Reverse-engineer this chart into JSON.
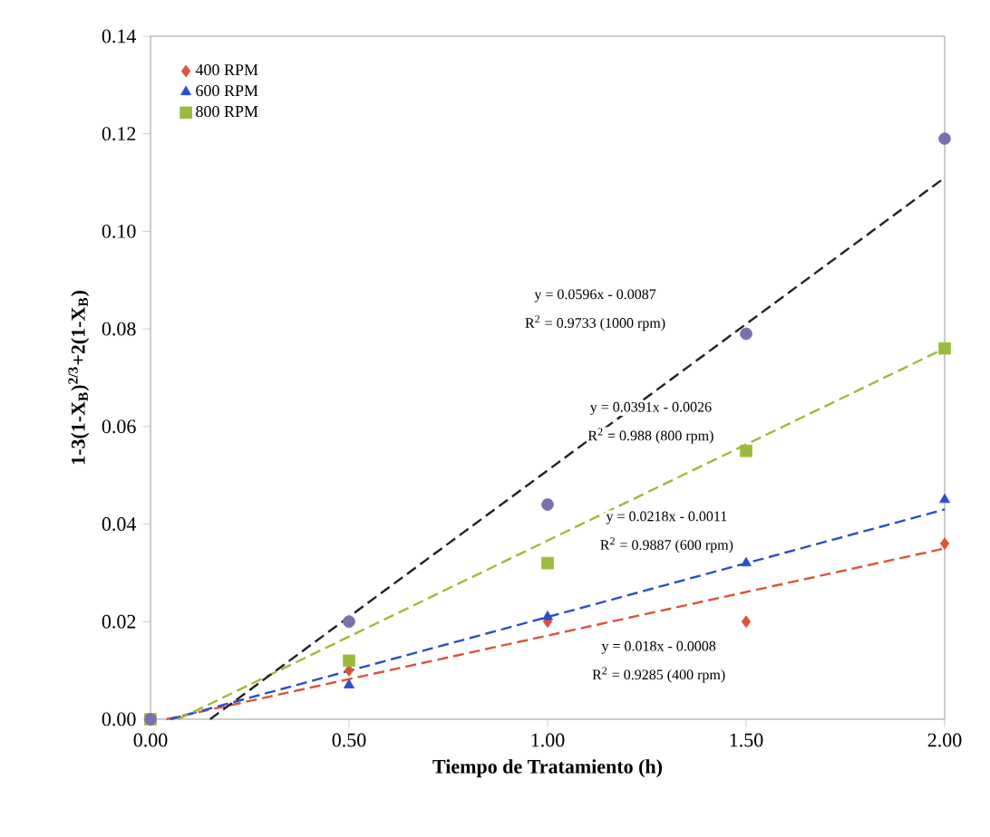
{
  "chart_data": {
    "type": "scatter",
    "xlabel": "Tiempo de Tratamiento (h)",
    "ylabel": "1-3(1-X$_{B}$)$^{2/3}$+2(1-X$_{B}$)",
    "x": [
      0,
      0.5,
      1.0,
      1.5,
      2.0
    ],
    "series": [
      {
        "name": "400 RPM",
        "color": "#e0503c",
        "marker": "diamond",
        "values": [
          null,
          0.01,
          0.02,
          0.02,
          0.036
        ]
      },
      {
        "name": "600 RPM",
        "color": "#2a4fc8",
        "marker": "triangle",
        "values": [
          null,
          0.007,
          0.021,
          0.032,
          0.045
        ]
      },
      {
        "name": "800 RPM",
        "color": "#9bbb3c",
        "marker": "square",
        "values": [
          0,
          0.012,
          0.032,
          0.055,
          0.076
        ]
      },
      {
        "color": "#7a6fb0",
        "marker": "circle",
        "values": [
          0,
          0.02,
          0.044,
          0.079,
          0.119
        ]
      },
      {
        "type": "line",
        "color": "#e0503c",
        "line_style": "dashed",
        "x": [
          0.04,
          2.0
        ],
        "values": [
          0,
          0.035
        ]
      },
      {
        "type": "line",
        "color": "#2a4fc8",
        "line_style": "dashed",
        "x": [
          0.05,
          2.0
        ],
        "values": [
          0,
          0.043
        ]
      },
      {
        "type": "line",
        "color": "#9bbb3c",
        "line_style": "dashed",
        "x": [
          0.07,
          2.0
        ],
        "values": [
          0,
          0.076
        ]
      },
      {
        "type": "line",
        "color": "#222222",
        "line_style": "dashed",
        "x": [
          0.15,
          2.0
        ],
        "values": [
          0,
          0.111
        ]
      }
    ],
    "xlim": [
      0,
      2.0
    ],
    "ylim": [
      0,
      0.14
    ],
    "xticks": [
      {
        "value": 0,
        "label": "0.00"
      },
      {
        "value": 0.5,
        "label": "0.50"
      },
      {
        "value": 1.0,
        "label": "1.00"
      },
      {
        "value": 1.5,
        "label": "1.50"
      },
      {
        "value": 2.0,
        "label": "2.00"
      }
    ],
    "yticks": [
      {
        "value": 0,
        "label": "0.00"
      },
      {
        "value": 0.02,
        "label": "0.02"
      },
      {
        "value": 0.04,
        "label": "0.04"
      },
      {
        "value": 0.06,
        "label": "0.06"
      },
      {
        "value": 0.08,
        "label": "0.08"
      },
      {
        "value": 0.1,
        "label": "0.10"
      },
      {
        "value": 0.12,
        "label": "0.12"
      },
      {
        "value": 0.14,
        "label": "0.14"
      }
    ],
    "legend": "top left",
    "annotations": [
      "y = 0.0596x - 0.0087",
      "R$^{2}$ = 0.9733 (1000 rpm)",
      "y = 0.0391x - 0.0026",
      "R$^{2}$ = 0.988 (800 rpm)",
      "y = 0.0218x - 0.0011",
      "R$^{2}$ = 0.9887 (600 rpm)",
      "y = 0.018x - 0.0008",
      "R$^{2}$ = 0.9285 (400 rpm)"
    ]
  }
}
